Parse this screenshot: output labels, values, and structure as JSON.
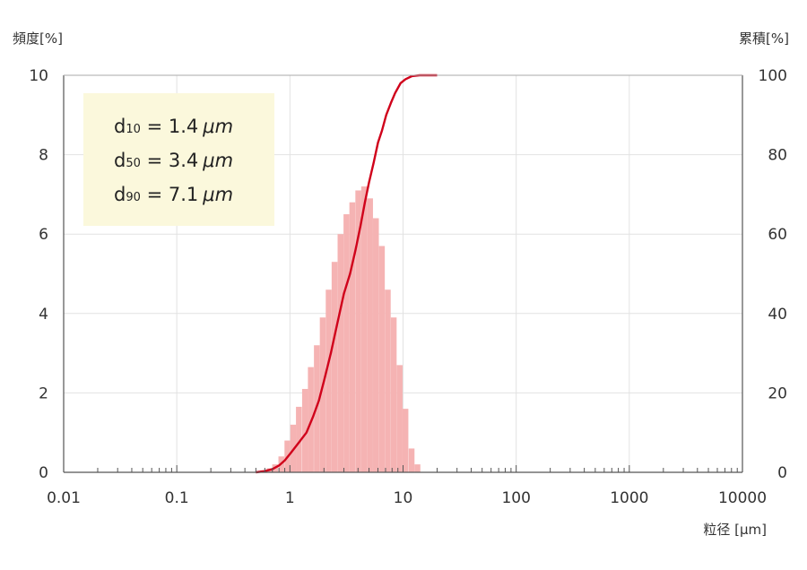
{
  "chart_data": {
    "type": "bar",
    "y_left_label": "頻度[%]",
    "y_right_label": "累積[%]",
    "xlabel": "粒径 [μm]",
    "x_scale": "log",
    "xlim": [
      0.01,
      10000
    ],
    "ylim_left": [
      0,
      10
    ],
    "ylim_right": [
      0,
      100
    ],
    "x_tick_labels": [
      "0.01",
      "0.1",
      "1",
      "10",
      "100",
      "1000",
      "10000"
    ],
    "y_left_tick_labels": [
      "0",
      "2",
      "4",
      "6",
      "8",
      "10"
    ],
    "y_right_tick_labels": [
      "0",
      "20",
      "40",
      "60",
      "80",
      "100"
    ],
    "grid": true,
    "annotation": {
      "lines": [
        {
          "prefix": "d",
          "sub": "10",
          "eq": " = ",
          "value": "1.4",
          "unit": "μm"
        },
        {
          "prefix": "d",
          "sub": "50",
          "eq": " = ",
          "value": "3.4",
          "unit": "μm"
        },
        {
          "prefix": "d",
          "sub": "90",
          "eq": " = ",
          "value": "7.1",
          "unit": "μm"
        }
      ],
      "placement": "top-left",
      "background": "#fbf8dc"
    },
    "series": [
      {
        "kind": "histogram",
        "color": "#f5b3b3",
        "x": [
          0.58,
          0.66,
          0.74,
          0.84,
          0.95,
          1.07,
          1.2,
          1.36,
          1.53,
          1.73,
          1.95,
          2.2,
          2.48,
          2.8,
          3.16,
          3.56,
          4.02,
          4.53,
          5.11,
          5.76,
          6.5,
          7.33,
          8.27,
          9.33,
          10.5,
          11.9,
          13.4
        ],
        "values": [
          0.05,
          0.1,
          0.2,
          0.4,
          0.8,
          1.2,
          1.65,
          2.1,
          2.65,
          3.2,
          3.9,
          4.6,
          5.3,
          6.0,
          6.5,
          6.8,
          7.1,
          7.2,
          6.9,
          6.4,
          5.7,
          4.6,
          3.9,
          2.7,
          1.6,
          0.6,
          0.2
        ]
      },
      {
        "kind": "cumulative",
        "color": "#d0021b",
        "x": [
          0.5,
          0.6,
          0.7,
          0.8,
          0.9,
          1.0,
          1.2,
          1.4,
          1.6,
          1.8,
          2.0,
          2.3,
          2.6,
          3.0,
          3.4,
          3.8,
          4.2,
          4.6,
          5.0,
          5.5,
          6.0,
          6.5,
          7.1,
          7.8,
          8.5,
          9.5,
          10.5,
          12.0,
          14.0,
          20.0
        ],
        "values": [
          0,
          0.3,
          0.8,
          1.7,
          3,
          4.6,
          7.5,
          10,
          14,
          18,
          23,
          30,
          37,
          45,
          50,
          56,
          62,
          68,
          73,
          78,
          83,
          86,
          90,
          93,
          95.5,
          98,
          99,
          99.8,
          100,
          100
        ]
      }
    ]
  }
}
